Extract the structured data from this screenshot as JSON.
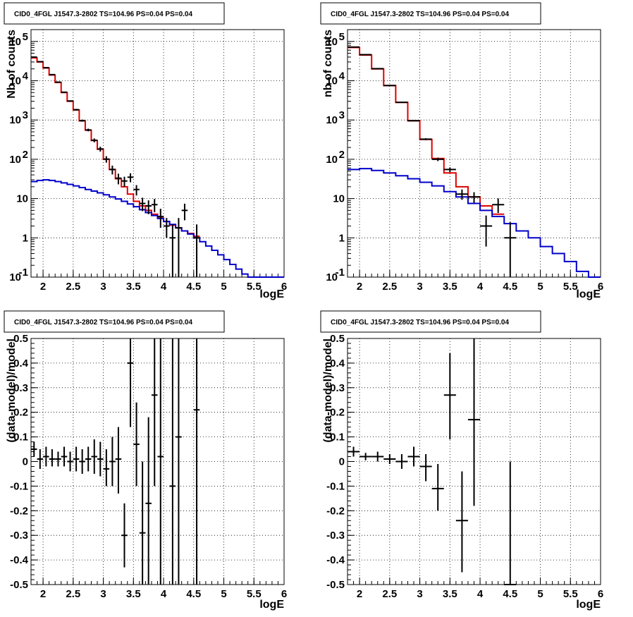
{
  "colors": {
    "data": "#000000",
    "total_model": "#e00000",
    "component_model": "#0000cc",
    "grid": "#000000"
  },
  "chart_data": [
    {
      "type": "line",
      "title": "CID0_4FGL J1547.3-2802 TS=104.96 PS=0.04 PS=0.04",
      "xlabel": "logE",
      "ylabel": "Nb of counts",
      "xlim": [
        1.8,
        6.0
      ],
      "ylim": [
        0.1,
        200000
      ],
      "yscale": "log",
      "grid": true,
      "x_ticks": [
        "2",
        "2.5",
        "3",
        "3.5",
        "4",
        "4.5",
        "5",
        "5.5",
        "6"
      ],
      "y_ticks": [
        "10^-1",
        "1",
        "10",
        "10^2",
        "10^3",
        "10^4",
        "10^5"
      ],
      "series": [
        {
          "kind": "step",
          "color_key": "total_model",
          "edges": [
            1.8,
            1.9,
            2.0,
            2.1,
            2.2,
            2.3,
            2.4,
            2.5,
            2.6,
            2.7,
            2.8,
            2.9,
            3.0,
            3.1,
            3.2,
            3.3,
            3.4,
            3.5,
            3.6,
            3.7,
            3.8,
            3.9,
            4.0,
            4.1,
            4.2,
            4.3,
            4.4,
            4.5,
            4.6
          ],
          "values": [
            38000,
            30000,
            21000,
            14000,
            9000,
            5000,
            3000,
            1800,
            950,
            550,
            300,
            180,
            100,
            55,
            32,
            20,
            13,
            8.5,
            6.5,
            5,
            4,
            3.2,
            2.6,
            2.1,
            1.8,
            1.5,
            1.3,
            1.1
          ]
        },
        {
          "kind": "step",
          "color_key": "component_model",
          "edges": [
            1.8,
            1.9,
            2.0,
            2.1,
            2.2,
            2.3,
            2.4,
            2.5,
            2.6,
            2.7,
            2.8,
            2.9,
            3.0,
            3.1,
            3.2,
            3.3,
            3.4,
            3.5,
            3.6,
            3.7,
            3.8,
            3.9,
            4.0,
            4.1,
            4.2,
            4.3,
            4.4,
            4.5,
            4.6,
            4.7,
            4.8,
            4.9,
            5.0,
            5.1,
            5.2,
            5.3,
            5.4,
            5.5,
            5.6,
            5.7,
            5.8,
            5.9,
            6.0
          ],
          "values": [
            27,
            29,
            30,
            29,
            27,
            25,
            23,
            21,
            19,
            17,
            15.5,
            14,
            12.5,
            11,
            9.8,
            8.5,
            7.3,
            6.2,
            5.2,
            4.4,
            3.7,
            3.1,
            2.6,
            2.2,
            1.8,
            1.5,
            1.25,
            1.0,
            0.8,
            0.62,
            0.48,
            0.37,
            0.28,
            0.21,
            0.16,
            0.12,
            0.1,
            0.1,
            0.1,
            0.1,
            0.1,
            0.1
          ]
        },
        {
          "kind": "points",
          "color_key": "data",
          "x": [
            1.85,
            1.95,
            2.05,
            2.15,
            2.25,
            2.35,
            2.45,
            2.55,
            2.65,
            2.75,
            2.85,
            2.95,
            3.05,
            3.15,
            3.25,
            3.35,
            3.45,
            3.55,
            3.65,
            3.75,
            3.85,
            3.95,
            4.05,
            4.15,
            4.25,
            4.35,
            4.55
          ],
          "y": [
            40000,
            30500,
            21500,
            14300,
            9200,
            5100,
            3050,
            1830,
            965,
            558,
            305,
            183,
            101,
            55,
            33,
            28,
            35,
            17,
            7.5,
            6.5,
            7,
            3.5,
            2,
            1,
            1.8,
            5,
            1
          ],
          "xerr": 0.05,
          "ylo": [
            39800,
            30300,
            21300,
            14100,
            9000,
            4950,
            2940,
            1740,
            905,
            514,
            271,
            157,
            82,
            41,
            23,
            20,
            26,
            12,
            4.8,
            4,
            4.5,
            1.8,
            1,
            0.1,
            0.1,
            2.8,
            0.1
          ],
          "yhi": [
            40200,
            30700,
            21700,
            14500,
            9400,
            5250,
            3160,
            1920,
            1025,
            602,
            339,
            209,
            120,
            69,
            43,
            36,
            44,
            22,
            10.5,
            9,
            9.8,
            5.5,
            3.2,
            2.2,
            3.2,
            7.4,
            2.2
          ]
        }
      ]
    },
    {
      "type": "line",
      "title": "CID0_4FGL J1547.3-2802 TS=104.96 PS=0.04 PS=0.04",
      "xlabel": "logE",
      "ylabel": "nb of counts",
      "xlim": [
        1.8,
        6.0
      ],
      "ylim": [
        0.1,
        200000
      ],
      "yscale": "log",
      "grid": true,
      "x_ticks": [
        "2",
        "2.5",
        "3",
        "3.5",
        "4",
        "4.5",
        "5",
        "5.5",
        "6"
      ],
      "y_ticks": [
        "10^-1",
        "1",
        "10",
        "10^2",
        "10^3",
        "10^4",
        "10^5"
      ],
      "series": [
        {
          "kind": "step",
          "color_key": "total_model",
          "edges": [
            1.8,
            2.0,
            2.2,
            2.4,
            2.6,
            2.8,
            3.0,
            3.2,
            3.4,
            3.6,
            3.8,
            4.0,
            4.2,
            4.4
          ],
          "values": [
            70000,
            45000,
            20000,
            7500,
            2800,
            950,
            320,
            105,
            45,
            20,
            11,
            6.5,
            4
          ]
        },
        {
          "kind": "step",
          "color_key": "component_model",
          "edges": [
            1.8,
            2.0,
            2.2,
            2.4,
            2.6,
            2.8,
            3.0,
            3.2,
            3.4,
            3.6,
            3.8,
            4.0,
            4.2,
            4.4,
            4.6,
            4.8,
            5.0,
            5.2,
            5.4,
            5.6,
            5.8,
            6.0
          ],
          "values": [
            55,
            58,
            52,
            45,
            38,
            32,
            26,
            21,
            15,
            11,
            7.5,
            5,
            3.5,
            2.3,
            1.5,
            1.0,
            0.6,
            0.4,
            0.25,
            0.14,
            0.1
          ]
        },
        {
          "kind": "points",
          "color_key": "data",
          "x": [
            1.9,
            2.1,
            2.3,
            2.5,
            2.7,
            2.9,
            3.1,
            3.3,
            3.5,
            3.7,
            3.9,
            4.1,
            4.3,
            4.5
          ],
          "y": [
            72000,
            46000,
            20300,
            7550,
            2820,
            960,
            325,
            100,
            55,
            13,
            11,
            2,
            7,
            1
          ],
          "xerr": 0.1,
          "ylo": [
            71700,
            45780,
            20150,
            7460,
            2765,
            928,
            307,
            90,
            47,
            9.3,
            7.8,
            0.6,
            4.3,
            0.1
          ],
          "yhi": [
            72300,
            46220,
            20450,
            7640,
            2875,
            992,
            343,
            110,
            62,
            17,
            14.5,
            3.7,
            10.1,
            2.5
          ]
        }
      ]
    },
    {
      "type": "scatter",
      "title": "CID0_4FGL J1547.3-2802 TS=104.96 PS=0.04 PS=0.04",
      "xlabel": "logE",
      "ylabel": "(data-model)/model",
      "xlim": [
        1.8,
        6.0
      ],
      "ylim": [
        -0.5,
        0.5
      ],
      "grid": true,
      "x_ticks": [
        "2",
        "2.5",
        "3",
        "3.5",
        "4",
        "4.5",
        "5",
        "5.5",
        "6"
      ],
      "y_ticks": [
        "-0.5",
        "-0.4",
        "-0.3",
        "-0.2",
        "-0.1",
        "0",
        "0.1",
        "0.2",
        "0.3",
        "0.4",
        "0.5"
      ],
      "series": [
        {
          "kind": "points",
          "color_key": "data",
          "x": [
            1.85,
            1.95,
            2.05,
            2.15,
            2.25,
            2.35,
            2.45,
            2.55,
            2.65,
            2.75,
            2.85,
            2.95,
            3.05,
            3.15,
            3.25,
            3.35,
            3.45,
            3.55,
            3.65,
            3.75,
            3.85,
            3.95,
            4.15,
            4.25,
            4.55
          ],
          "y": [
            0.05,
            0.01,
            0.02,
            0.01,
            0.01,
            0.02,
            0.0,
            0.01,
            0.0,
            0.01,
            0.02,
            0.01,
            -0.03,
            0.0,
            0.01,
            -0.3,
            0.4,
            0.07,
            -0.29,
            -0.17,
            0.27,
            0.02,
            -0.1,
            0.1,
            0.21
          ],
          "xerr": 0.05,
          "ylo": [
            0.02,
            -0.03,
            -0.02,
            -0.02,
            -0.02,
            -0.02,
            -0.04,
            -0.04,
            -0.05,
            -0.04,
            -0.05,
            -0.06,
            -0.1,
            -0.1,
            -0.13,
            -0.43,
            0.14,
            -0.1,
            -0.6,
            -0.6,
            -0.1,
            -0.6,
            -0.6,
            -0.6,
            -0.6
          ],
          "yhi": [
            0.08,
            0.05,
            0.06,
            0.05,
            0.04,
            0.06,
            0.04,
            0.06,
            0.05,
            0.06,
            0.09,
            0.08,
            0.05,
            0.1,
            0.14,
            -0.17,
            0.6,
            0.24,
            0.0,
            0.18,
            0.6,
            0.6,
            0.6,
            0.6,
            0.6
          ]
        }
      ]
    },
    {
      "type": "scatter",
      "title": "CID0_4FGL J1547.3-2802 TS=104.96 PS=0.04 PS=0.04",
      "xlabel": "logE",
      "ylabel": "(data-model)/model",
      "xlim": [
        1.8,
        6.0
      ],
      "ylim": [
        -0.5,
        0.5
      ],
      "grid": true,
      "x_ticks": [
        "2",
        "2.5",
        "3",
        "3.5",
        "4",
        "4.5",
        "5",
        "5.5",
        "6"
      ],
      "y_ticks": [
        "-0.5",
        "-0.4",
        "-0.3",
        "-0.2",
        "-0.1",
        "0",
        "0.1",
        "0.2",
        "0.3",
        "0.4",
        "0.5"
      ],
      "series": [
        {
          "kind": "points",
          "color_key": "data",
          "x": [
            1.9,
            2.1,
            2.3,
            2.5,
            2.7,
            2.9,
            3.1,
            3.3,
            3.5,
            3.7,
            3.9,
            4.5
          ],
          "y": [
            0.04,
            0.02,
            0.02,
            0.01,
            0.0,
            0.02,
            -0.02,
            -0.11,
            0.27,
            -0.24,
            0.17,
            -0.5
          ],
          "xerr": 0.1,
          "ylo": [
            0.02,
            0.005,
            0.0,
            -0.01,
            -0.03,
            -0.02,
            -0.08,
            -0.2,
            0.09,
            -0.45,
            -0.18,
            -0.6
          ],
          "yhi": [
            0.06,
            0.035,
            0.04,
            0.03,
            0.03,
            0.06,
            0.03,
            -0.01,
            0.44,
            -0.04,
            0.6,
            0.0
          ]
        }
      ]
    }
  ]
}
